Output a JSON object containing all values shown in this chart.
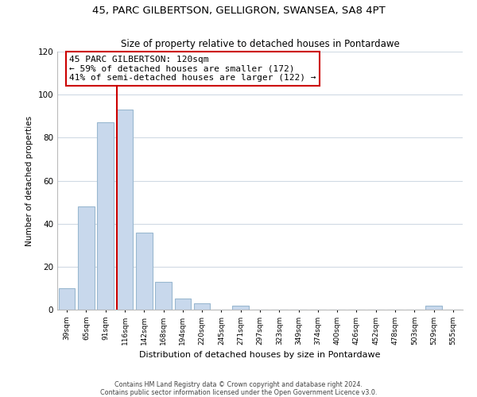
{
  "title1": "45, PARC GILBERTSON, GELLIGRON, SWANSEA, SA8 4PT",
  "title2": "Size of property relative to detached houses in Pontardawe",
  "xlabel": "Distribution of detached houses by size in Pontardawe",
  "ylabel": "Number of detached properties",
  "bar_color": "#c8d8ec",
  "bar_edge_color": "#9ab8d0",
  "bin_labels": [
    "39sqm",
    "65sqm",
    "91sqm",
    "116sqm",
    "142sqm",
    "168sqm",
    "194sqm",
    "220sqm",
    "245sqm",
    "271sqm",
    "297sqm",
    "323sqm",
    "349sqm",
    "374sqm",
    "400sqm",
    "426sqm",
    "452sqm",
    "478sqm",
    "503sqm",
    "529sqm",
    "555sqm"
  ],
  "bar_values": [
    10,
    48,
    87,
    93,
    36,
    13,
    5,
    3,
    0,
    2,
    0,
    0,
    0,
    0,
    0,
    0,
    0,
    0,
    0,
    2,
    0
  ],
  "property_line_bin": 3,
  "property_label": "45 PARC GILBERTSON: 120sqm",
  "annotation_line1": "← 59% of detached houses are smaller (172)",
  "annotation_line2": "41% of semi-detached houses are larger (122) →",
  "box_color": "#ffffff",
  "box_edge_color": "#cc0000",
  "line_color": "#cc0000",
  "ylim": [
    0,
    120
  ],
  "yticks": [
    0,
    20,
    40,
    60,
    80,
    100,
    120
  ],
  "footer1": "Contains HM Land Registry data © Crown copyright and database right 2024.",
  "footer2": "Contains public sector information licensed under the Open Government Licence v3.0.",
  "bg_color": "#ffffff",
  "grid_color": "#d0dae4"
}
